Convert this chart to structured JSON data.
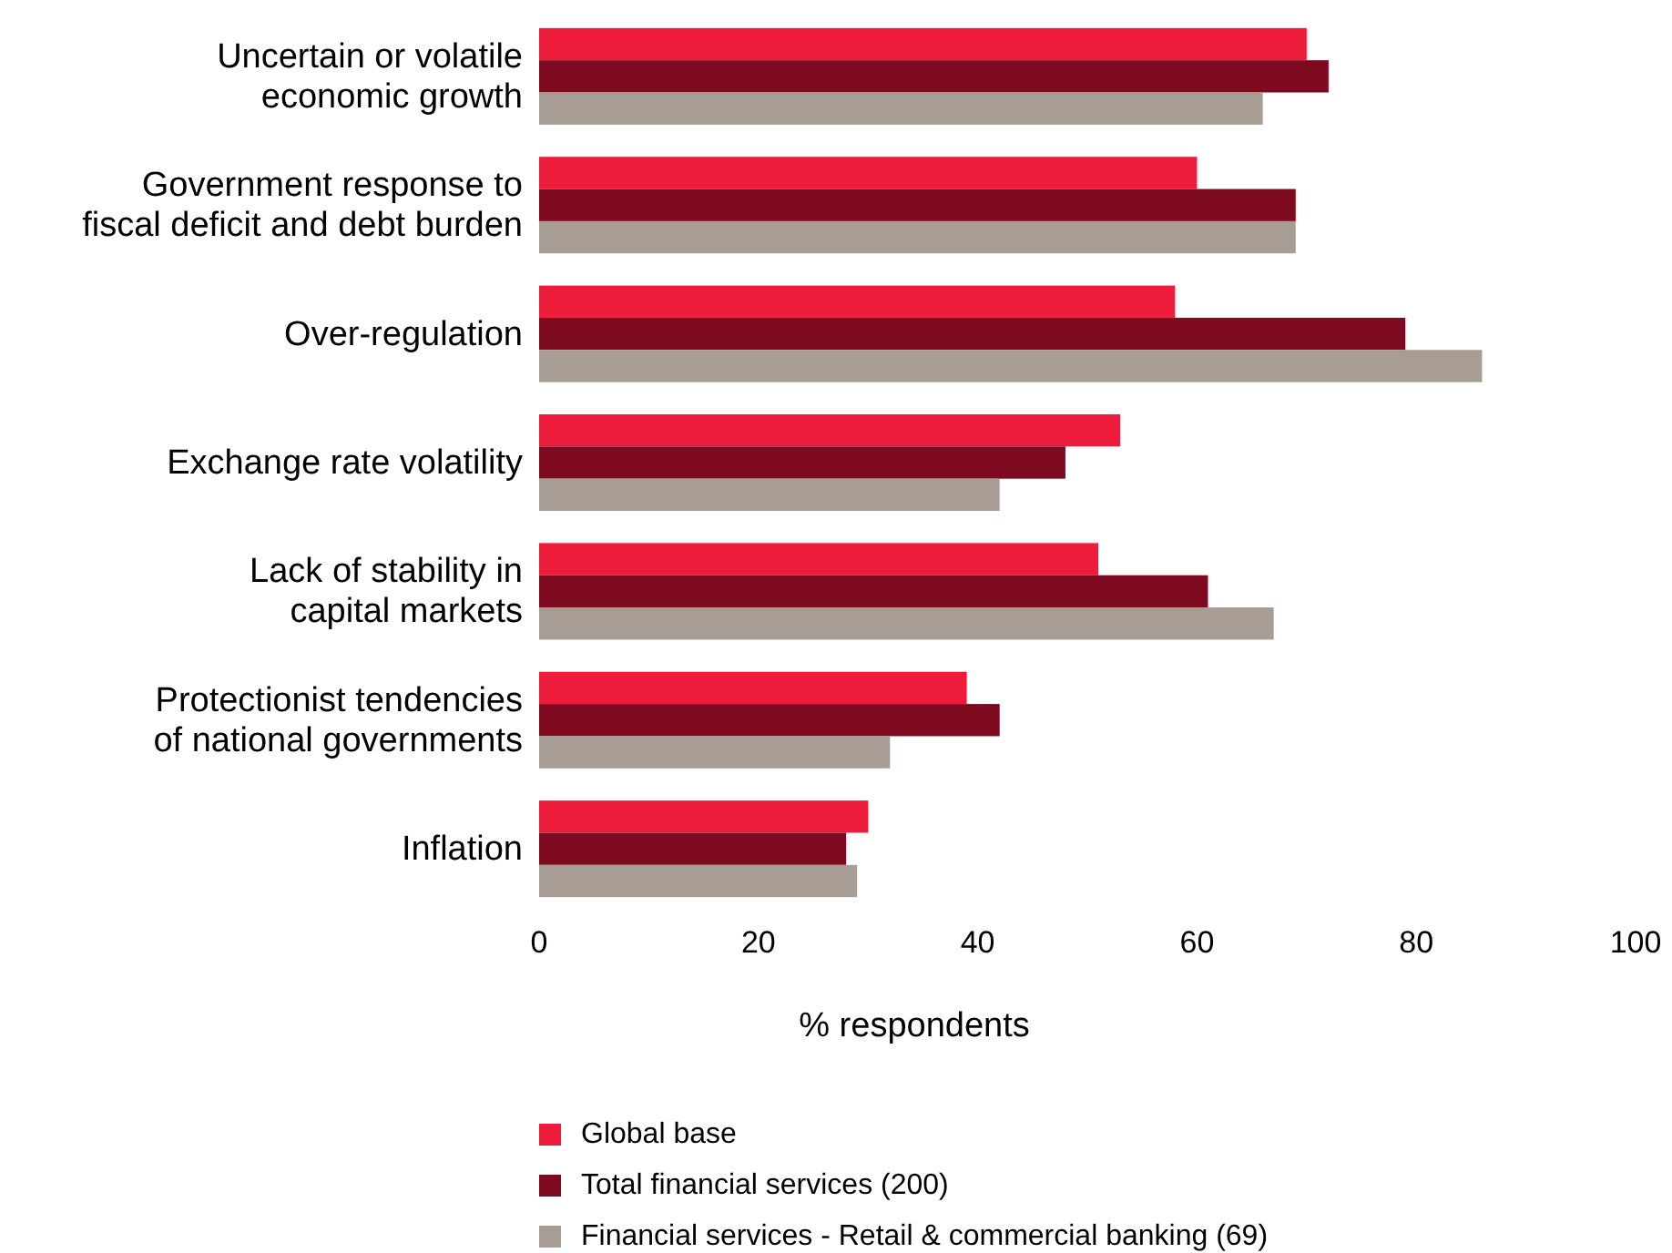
{
  "chart_data": {
    "type": "bar",
    "orientation": "horizontal",
    "xlabel": "% respondents",
    "categories": [
      "Uncertain or volatile economic growth",
      "Government response to fiscal deficit and debt burden",
      "Over-regulation",
      "Exchange rate volatility",
      "Lack of stability in capital markets",
      "Protectionist tendencies of national governments",
      "Inflation"
    ],
    "series": [
      {
        "name": "Global base",
        "color": "#ed1c3a",
        "values": [
          70,
          60,
          58,
          53,
          51,
          39,
          30
        ]
      },
      {
        "name": "Total financial services (200)",
        "color": "#7d0a1e",
        "values": [
          72,
          69,
          79,
          48,
          61,
          42,
          28
        ]
      },
      {
        "name": "Financial services - Retail & commercial banking (69)",
        "color": "#a89d95",
        "values": [
          66,
          69,
          86,
          42,
          67,
          32,
          29
        ]
      }
    ],
    "xlim": [
      0,
      100
    ],
    "xticks": [
      0,
      20,
      40,
      60,
      80,
      100
    ],
    "grid": false,
    "legend": "bottom"
  }
}
